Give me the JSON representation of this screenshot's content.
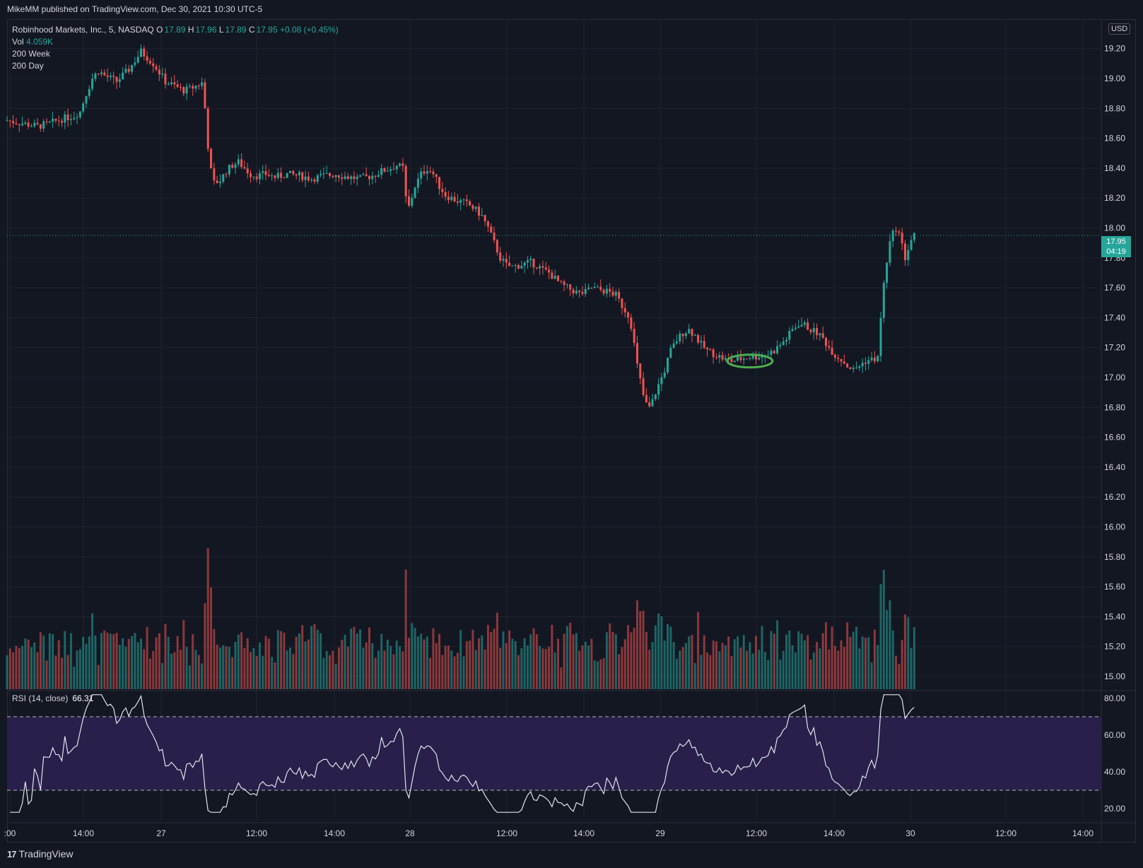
{
  "header": {
    "published": "MikeMM published on TradingView.com, Dec 30, 2021 10:30 UTC-5"
  },
  "legend": {
    "symbol": "Robinhood Markets, Inc., 5, NASDAQ",
    "o_label": "O",
    "o_value": "17.89",
    "h_label": "H",
    "h_value": "17.96",
    "l_label": "L",
    "l_value": "17.89",
    "c_label": "C",
    "c_value": "17.95",
    "change": "+0.08 (+0.45%)",
    "vol_label": "Vol",
    "vol_value": "4.059K",
    "ma1": "200 Week",
    "ma2": "200 Day"
  },
  "currency": "USD",
  "last_price": {
    "price": "17.95",
    "countdown": "04:19"
  },
  "rsi": {
    "label": "RSI (14, close)",
    "value": "66.31",
    "ticks": [
      "80.00",
      "60.00",
      "40.00",
      "20.00"
    ],
    "upper": 70,
    "lower": 30
  },
  "footer": {
    "brand": "TradingView"
  },
  "colors": {
    "up": "#26a69a",
    "down": "#ef5350",
    "bg": "#131722",
    "rsi_band": "#2a1f4a",
    "highlight": "#4caf50"
  },
  "chart_data": {
    "type": "candlestick",
    "price_axis_ticks": [
      "19.20",
      "19.00",
      "18.80",
      "18.60",
      "18.40",
      "18.20",
      "18.00",
      "17.80",
      "17.60",
      "17.40",
      "17.20",
      "17.00",
      "16.80",
      "16.60",
      "16.40",
      "16.20",
      "16.00",
      "15.80",
      "15.60",
      "15.40",
      "15.20",
      "15.00"
    ],
    "time_axis_labels": [
      ":00",
      "14:00",
      "27",
      "12:00",
      "14:00",
      "28",
      "12:00",
      "14:00",
      "29",
      "12:00",
      "14:00",
      "30",
      "12:00",
      "14:00"
    ],
    "price_path": [
      [
        0,
        18.72
      ],
      [
        5,
        18.7
      ],
      [
        10,
        18.68
      ],
      [
        14,
        18.7
      ],
      [
        18,
        18.73
      ],
      [
        22,
        18.75
      ],
      [
        24,
        18.78
      ],
      [
        26,
        18.9
      ],
      [
        28,
        19.0
      ],
      [
        30,
        19.05
      ],
      [
        32,
        19.02
      ],
      [
        34,
        19.0
      ],
      [
        36,
        18.98
      ],
      [
        38,
        19.02
      ],
      [
        40,
        19.06
      ],
      [
        42,
        19.12
      ],
      [
        44,
        19.18
      ],
      [
        46,
        19.14
      ],
      [
        48,
        19.1
      ],
      [
        50,
        19.04
      ],
      [
        52,
        18.98
      ],
      [
        54,
        18.96
      ],
      [
        56,
        18.94
      ],
      [
        58,
        18.92
      ],
      [
        60,
        18.93
      ],
      [
        62,
        18.95
      ],
      [
        64,
        18.97
      ],
      [
        65,
        18.8
      ],
      [
        66,
        18.55
      ],
      [
        67,
        18.38
      ],
      [
        68,
        18.3
      ],
      [
        70,
        18.32
      ],
      [
        72,
        18.38
      ],
      [
        74,
        18.42
      ],
      [
        76,
        18.44
      ],
      [
        78,
        18.4
      ],
      [
        80,
        18.36
      ],
      [
        82,
        18.35
      ],
      [
        85,
        18.36
      ],
      [
        88,
        18.34
      ],
      [
        92,
        18.36
      ],
      [
        96,
        18.35
      ],
      [
        100,
        18.33
      ],
      [
        104,
        18.35
      ],
      [
        108,
        18.36
      ],
      [
        112,
        18.34
      ],
      [
        116,
        18.33
      ],
      [
        120,
        18.35
      ],
      [
        123,
        18.38
      ],
      [
        126,
        18.4
      ],
      [
        128,
        18.42
      ],
      [
        130,
        18.4
      ],
      [
        131,
        18.2
      ],
      [
        132,
        18.14
      ],
      [
        134,
        18.28
      ],
      [
        136,
        18.36
      ],
      [
        138,
        18.4
      ],
      [
        140,
        18.36
      ],
      [
        142,
        18.28
      ],
      [
        144,
        18.22
      ],
      [
        146,
        18.2
      ],
      [
        148,
        18.18
      ],
      [
        150,
        18.17
      ],
      [
        152,
        18.15
      ],
      [
        154,
        18.12
      ],
      [
        156,
        18.08
      ],
      [
        158,
        18.0
      ],
      [
        160,
        17.9
      ],
      [
        162,
        17.8
      ],
      [
        164,
        17.75
      ],
      [
        166,
        17.74
      ],
      [
        168,
        17.75
      ],
      [
        170,
        17.76
      ],
      [
        172,
        17.77
      ],
      [
        174,
        17.75
      ],
      [
        176,
        17.72
      ],
      [
        178,
        17.7
      ],
      [
        180,
        17.66
      ],
      [
        182,
        17.62
      ],
      [
        184,
        17.6
      ],
      [
        186,
        17.58
      ],
      [
        188,
        17.56
      ],
      [
        190,
        17.57
      ],
      [
        192,
        17.6
      ],
      [
        194,
        17.59
      ],
      [
        196,
        17.58
      ],
      [
        198,
        17.57
      ],
      [
        200,
        17.55
      ],
      [
        202,
        17.48
      ],
      [
        204,
        17.42
      ],
      [
        205,
        17.35
      ],
      [
        206,
        17.22
      ],
      [
        207,
        17.08
      ],
      [
        208,
        16.98
      ],
      [
        209,
        16.88
      ],
      [
        210,
        16.82
      ],
      [
        211,
        16.8
      ],
      [
        212,
        16.84
      ],
      [
        213,
        16.9
      ],
      [
        214,
        16.95
      ],
      [
        216,
        17.05
      ],
      [
        218,
        17.18
      ],
      [
        220,
        17.25
      ],
      [
        222,
        17.3
      ],
      [
        224,
        17.32
      ],
      [
        226,
        17.28
      ],
      [
        228,
        17.22
      ],
      [
        230,
        17.18
      ],
      [
        232,
        17.16
      ],
      [
        234,
        17.14
      ],
      [
        236,
        17.12
      ],
      [
        238,
        17.11
      ],
      [
        240,
        17.12
      ],
      [
        242,
        17.13
      ],
      [
        244,
        17.14
      ],
      [
        246,
        17.14
      ],
      [
        248,
        17.15
      ],
      [
        250,
        17.16
      ],
      [
        252,
        17.18
      ],
      [
        254,
        17.22
      ],
      [
        256,
        17.26
      ],
      [
        258,
        17.32
      ],
      [
        260,
        17.36
      ],
      [
        262,
        17.35
      ],
      [
        264,
        17.32
      ],
      [
        266,
        17.3
      ],
      [
        268,
        17.26
      ],
      [
        270,
        17.2
      ],
      [
        272,
        17.15
      ],
      [
        274,
        17.12
      ],
      [
        276,
        17.08
      ],
      [
        278,
        17.05
      ],
      [
        280,
        17.08
      ],
      [
        282,
        17.11
      ],
      [
        284,
        17.12
      ],
      [
        286,
        17.13
      ],
      [
        287,
        17.4
      ],
      [
        288,
        17.62
      ],
      [
        289,
        17.78
      ],
      [
        290,
        17.9
      ],
      [
        291,
        17.96
      ],
      [
        292,
        18.0
      ],
      [
        293,
        17.96
      ],
      [
        294,
        17.88
      ],
      [
        295,
        17.8
      ],
      [
        296,
        17.86
      ],
      [
        297,
        17.92
      ],
      [
        298,
        17.95
      ]
    ],
    "highlight_ellipse": {
      "x_bar": 244,
      "price": 17.11
    }
  }
}
